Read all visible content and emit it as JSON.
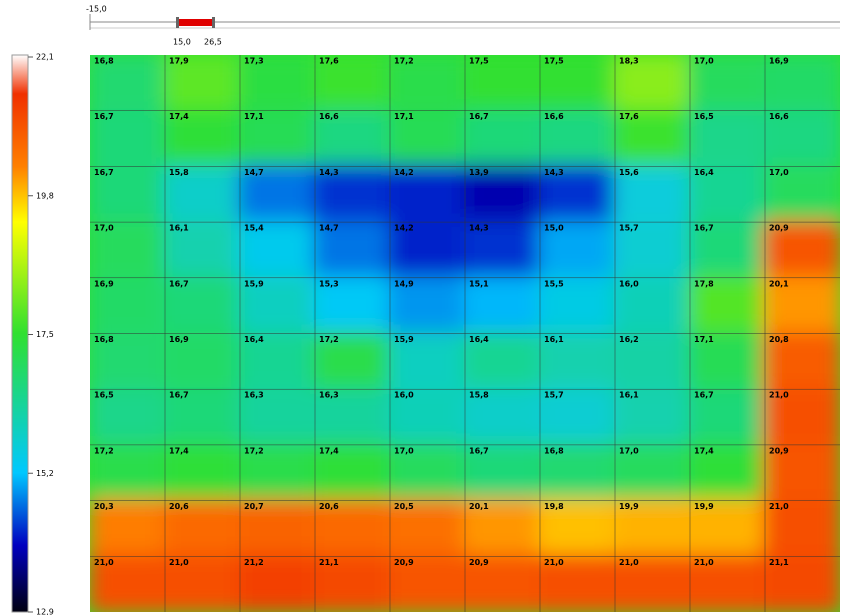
{
  "slider": {
    "min": "-15,0",
    "low": "15,0",
    "high": "26,5"
  },
  "scale": {
    "ticks": [
      "22,1",
      "19,8",
      "17,5",
      "15,2",
      "12,9"
    ]
  },
  "grid": {
    "rows": [
      [
        "16,8",
        "17,9",
        "17,3",
        "17,6",
        "17,2",
        "17,5",
        "17,5",
        "18,3",
        "17,0",
        "16,9"
      ],
      [
        "16,7",
        "17,4",
        "17,1",
        "16,6",
        "17,1",
        "16,7",
        "16,6",
        "17,6",
        "16,5",
        "16,6"
      ],
      [
        "16,7",
        "15,8",
        "14,7",
        "14,3",
        "14,2",
        "13,9",
        "14,3",
        "15,6",
        "16,4",
        "17,0"
      ],
      [
        "17,0",
        "16,1",
        "15,4",
        "14,7",
        "14,2",
        "14,3",
        "15,0",
        "15,7",
        "16,7",
        "20,9"
      ],
      [
        "16,9",
        "16,7",
        "15,9",
        "15,3",
        "14,9",
        "15,1",
        "15,5",
        "16,0",
        "17,8",
        "20,1"
      ],
      [
        "16,8",
        "16,9",
        "16,4",
        "17,2",
        "15,9",
        "16,4",
        "16,1",
        "16,2",
        "17,1",
        "20,8"
      ],
      [
        "16,5",
        "16,7",
        "16,3",
        "16,3",
        "16,0",
        "15,8",
        "15,7",
        "16,1",
        "16,7",
        "21,0"
      ],
      [
        "17,2",
        "17,4",
        "17,2",
        "17,4",
        "17,0",
        "16,7",
        "16,8",
        "17,0",
        "17,4",
        "20,9"
      ],
      [
        "20,3",
        "20,6",
        "20,7",
        "20,6",
        "20,5",
        "20,1",
        "19,8",
        "19,9",
        "19,9",
        "21,0"
      ],
      [
        "21,0",
        "21,0",
        "21,2",
        "21,1",
        "20,9",
        "20,9",
        "21,0",
        "21,0",
        "21,0",
        "21,1"
      ]
    ]
  }
}
